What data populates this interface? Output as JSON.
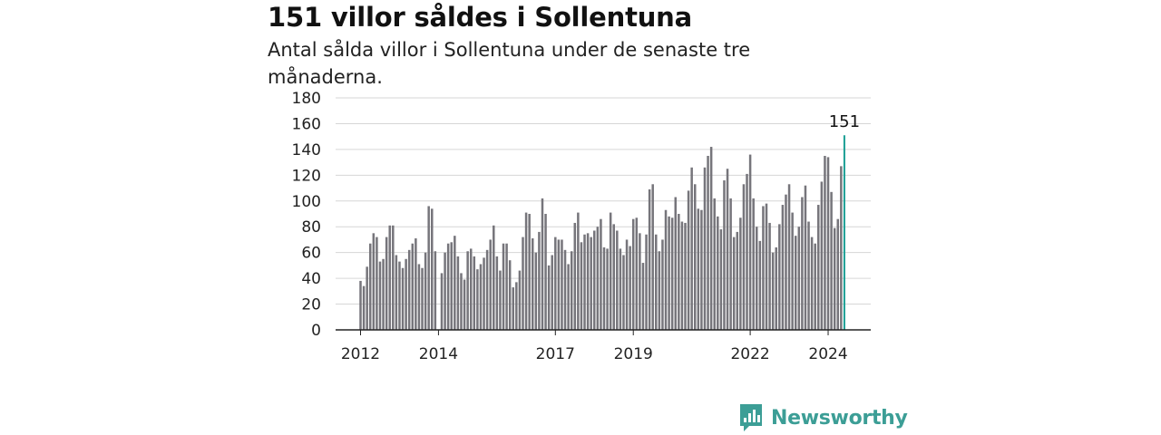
{
  "header": {
    "title": "151 villor såldes i Sollentuna",
    "subtitle": "Antal sålda villor i Sollentuna under de senaste tre månaderna."
  },
  "brand": {
    "name": "Newsworthy",
    "color": "#3c9e96"
  },
  "colors": {
    "bar": "#76757b",
    "highlight": "#1a9e94",
    "grid": "#d6d6d6",
    "axis": "#222222"
  },
  "chart_data": {
    "type": "bar",
    "ylim": [
      0,
      180
    ],
    "yticks": [
      0,
      20,
      40,
      60,
      80,
      100,
      120,
      140,
      160,
      180
    ],
    "x_start": "2012-01",
    "xticks": [
      {
        "label": "2012",
        "index": 0
      },
      {
        "label": "2014",
        "index": 24
      },
      {
        "label": "2017",
        "index": 60
      },
      {
        "label": "2019",
        "index": 84
      },
      {
        "label": "2022",
        "index": 120
      },
      {
        "label": "2024",
        "index": 144
      }
    ],
    "values": [
      38,
      34,
      49,
      67,
      75,
      72,
      53,
      55,
      72,
      81,
      81,
      58,
      53,
      48,
      55,
      62,
      67,
      71,
      51,
      48,
      60,
      96,
      94,
      61,
      0,
      44,
      60,
      67,
      68,
      73,
      57,
      44,
      39,
      61,
      63,
      57,
      47,
      51,
      56,
      62,
      70,
      81,
      57,
      46,
      67,
      67,
      54,
      33,
      37,
      46,
      72,
      91,
      90,
      71,
      60,
      76,
      102,
      90,
      50,
      58,
      72,
      70,
      70,
      62,
      51,
      61,
      83,
      91,
      68,
      74,
      75,
      72,
      77,
      80,
      86,
      64,
      63,
      91,
      82,
      77,
      63,
      58,
      70,
      65,
      86,
      87,
      75,
      52,
      74,
      109,
      113,
      74,
      61,
      70,
      93,
      88,
      87,
      103,
      90,
      84,
      83,
      108,
      126,
      113,
      94,
      93,
      126,
      135,
      142,
      102,
      88,
      78,
      116,
      125,
      102,
      72,
      76,
      87,
      113,
      121,
      136,
      102,
      80,
      69,
      96,
      98,
      83,
      60,
      64,
      82,
      97,
      105,
      113,
      91,
      73,
      80,
      103,
      112,
      84,
      72,
      67,
      97,
      115,
      135,
      134,
      107,
      79,
      86,
      127,
      151
    ],
    "highlight_label": "151"
  }
}
